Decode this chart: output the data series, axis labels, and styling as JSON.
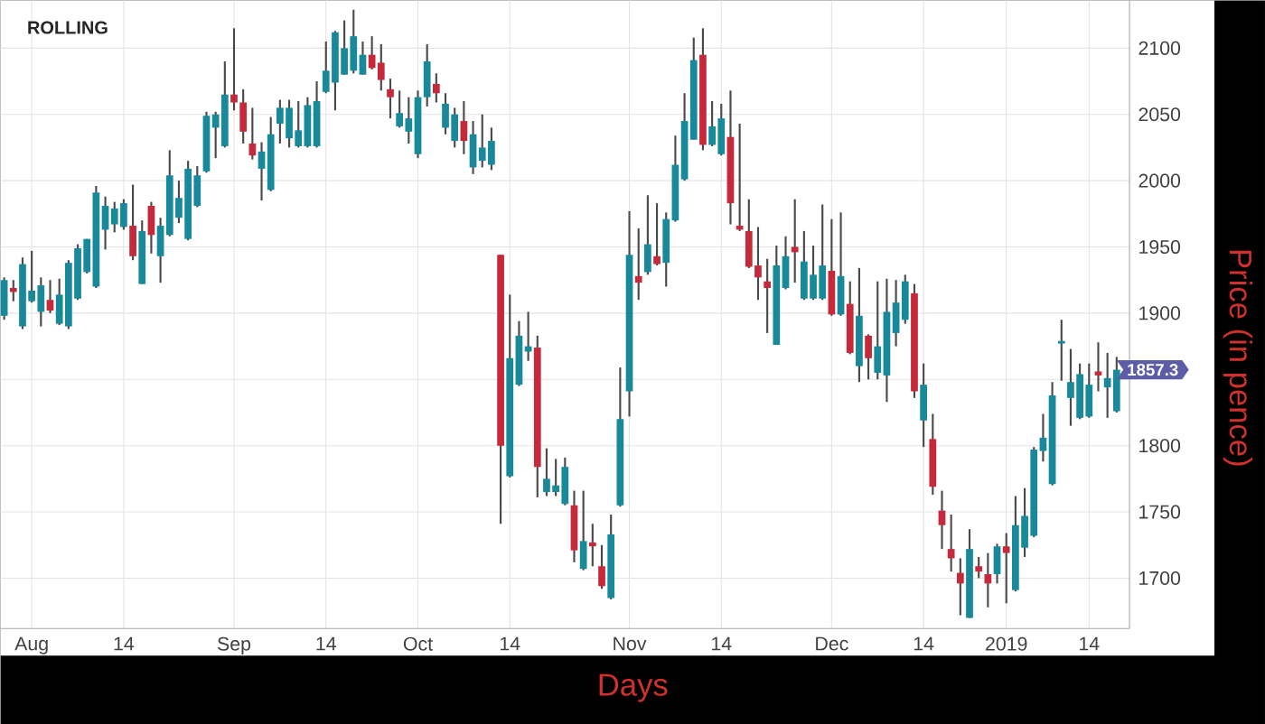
{
  "chart_data": {
    "type": "candlestick",
    "title": "ROLLING",
    "xlabel": "Days",
    "ylabel": "Price (in pence)",
    "categories": [
      null,
      null,
      null,
      "Aug",
      null,
      null,
      null,
      null,
      null,
      null,
      null,
      null,
      null,
      "14",
      null,
      null,
      null,
      null,
      null,
      null,
      null,
      null,
      null,
      null,
      null,
      "Sep",
      null,
      null,
      null,
      null,
      null,
      null,
      null,
      null,
      null,
      "14",
      null,
      null,
      null,
      null,
      null,
      null,
      null,
      null,
      null,
      "Oct",
      null,
      null,
      null,
      null,
      null,
      null,
      null,
      null,
      null,
      "14",
      null,
      null,
      null,
      null,
      null,
      null,
      null,
      null,
      null,
      null,
      null,
      null,
      "Nov",
      null,
      null,
      null,
      null,
      null,
      null,
      null,
      null,
      null,
      "14",
      null,
      null,
      null,
      null,
      null,
      null,
      null,
      null,
      null,
      null,
      null,
      "Dec",
      null,
      null,
      null,
      null,
      null,
      null,
      null,
      null,
      null,
      "14",
      null,
      null,
      null,
      null,
      null,
      null,
      null,
      null,
      "2019",
      null,
      null,
      null,
      null,
      null,
      null,
      null,
      null,
      "14",
      null,
      null,
      null
    ],
    "ohlc": [
      [
        1898,
        1927,
        1895,
        1925
      ],
      [
        1919,
        1925,
        1909,
        1916
      ],
      [
        1890,
        1942,
        1888,
        1937
      ],
      [
        1909,
        1947,
        1908,
        1917
      ],
      [
        1901,
        1927,
        1890,
        1921
      ],
      [
        1910,
        1925,
        1900,
        1902
      ],
      [
        1892,
        1926,
        1891,
        1914
      ],
      [
        1890,
        1940,
        1888,
        1938
      ],
      [
        1911,
        1952,
        1910,
        1949
      ],
      [
        1931,
        1956,
        1930,
        1956
      ],
      [
        1920,
        1996,
        1919,
        1991
      ],
      [
        1963,
        1988,
        1948,
        1981
      ],
      [
        1967,
        1984,
        1961,
        1979
      ],
      [
        1965,
        1986,
        1963,
        1983
      ],
      [
        1966,
        1997,
        1940,
        1943
      ],
      [
        1922,
        1970,
        1922,
        1962
      ],
      [
        1981,
        1984,
        1945,
        1959
      ],
      [
        1943,
        1972,
        1923,
        1966
      ],
      [
        1959,
        2023,
        1958,
        2004
      ],
      [
        1972,
        2000,
        1968,
        1987
      ],
      [
        1956,
        2015,
        1955,
        2009
      ],
      [
        1981,
        2011,
        1980,
        2004
      ],
      [
        2007,
        2052,
        2006,
        2049
      ],
      [
        2040,
        2052,
        2017,
        2050
      ],
      [
        2026,
        2090,
        2025,
        2065
      ],
      [
        2065,
        2115,
        2053,
        2059
      ],
      [
        2059,
        2069,
        2028,
        2037
      ],
      [
        2028,
        2055,
        2016,
        2019
      ],
      [
        2009,
        2029,
        1985,
        2022
      ],
      [
        1993,
        2048,
        1992,
        2035
      ],
      [
        2043,
        2061,
        2028,
        2055
      ],
      [
        2032,
        2061,
        2025,
        2055
      ],
      [
        2026,
        2060,
        2025,
        2038
      ],
      [
        2026,
        2063,
        2025,
        2057
      ],
      [
        2026,
        2075,
        2025,
        2060
      ],
      [
        2067,
        2105,
        2066,
        2083
      ],
      [
        2074,
        2113,
        2053,
        2112
      ],
      [
        2080,
        2121,
        2080,
        2100
      ],
      [
        2083,
        2129,
        2081,
        2109
      ],
      [
        2080,
        2105,
        2080,
        2095
      ],
      [
        2095,
        2109,
        2084,
        2085
      ],
      [
        2089,
        2103,
        2068,
        2076
      ],
      [
        2069,
        2077,
        2047,
        2063
      ],
      [
        2041,
        2068,
        2040,
        2051
      ],
      [
        2037,
        2063,
        2028,
        2047
      ],
      [
        2020,
        2068,
        2017,
        2063
      ],
      [
        2063,
        2103,
        2056,
        2090
      ],
      [
        2073,
        2081,
        2059,
        2066
      ],
      [
        2040,
        2066,
        2035,
        2058
      ],
      [
        2030,
        2055,
        2025,
        2050
      ],
      [
        2045,
        2060,
        2020,
        2030
      ],
      [
        2010,
        2045,
        2005,
        2035
      ],
      [
        2015,
        2050,
        2010,
        2025
      ],
      [
        2012,
        2040,
        2008,
        2030
      ],
      [
        1944,
        1944,
        1741,
        1800
      ],
      [
        1777,
        1914,
        1776,
        1866
      ],
      [
        1846,
        1894,
        1845,
        1883
      ],
      [
        1871,
        1901,
        1864,
        1875
      ],
      [
        1874,
        1883,
        1761,
        1784
      ],
      [
        1765,
        1798,
        1762,
        1775
      ],
      [
        1765,
        1790,
        1762,
        1770
      ],
      [
        1756,
        1791,
        1755,
        1784
      ],
      [
        1755,
        1766,
        1712,
        1721
      ],
      [
        1707,
        1766,
        1706,
        1728
      ],
      [
        1727,
        1741,
        1709,
        1724
      ],
      [
        1709,
        1725,
        1692,
        1694
      ],
      [
        1685,
        1748,
        1684,
        1733
      ],
      [
        1755,
        1859,
        1754,
        1820
      ],
      [
        1841,
        1977,
        1822,
        1944
      ],
      [
        1928,
        1964,
        1910,
        1923
      ],
      [
        1931,
        1989,
        1929,
        1952
      ],
      [
        1943,
        1983,
        1936,
        1937
      ],
      [
        1938,
        1976,
        1920,
        1971
      ],
      [
        1970,
        2034,
        1969,
        2012
      ],
      [
        2001,
        2066,
        2000,
        2045
      ],
      [
        2031,
        2108,
        2031,
        2091
      ],
      [
        2095,
        2115,
        2023,
        2027
      ],
      [
        2027,
        2060,
        2026,
        2041
      ],
      [
        2020,
        2058,
        2019,
        2047
      ],
      [
        2033,
        2068,
        1967,
        1983
      ],
      [
        1966,
        2043,
        1962,
        1963
      ],
      [
        1962,
        1986,
        1934,
        1935
      ],
      [
        1936,
        1965,
        1910,
        1927
      ],
      [
        1924,
        1941,
        1885,
        1919
      ],
      [
        1876,
        1951,
        1876,
        1936
      ],
      [
        1919,
        1958,
        1918,
        1943
      ],
      [
        1950,
        1986,
        1923,
        1946
      ],
      [
        1911,
        1962,
        1910,
        1939
      ],
      [
        1911,
        1951,
        1910,
        1929
      ],
      [
        1911,
        1982,
        1910,
        1936
      ],
      [
        1932,
        1971,
        1898,
        1899
      ],
      [
        1899,
        1976,
        1898,
        1928
      ],
      [
        1907,
        1924,
        1869,
        1870
      ],
      [
        1860,
        1934,
        1848,
        1898
      ],
      [
        1883,
        1884,
        1850,
        1866
      ],
      [
        1855,
        1924,
        1850,
        1875
      ],
      [
        1853,
        1926,
        1833,
        1901
      ],
      [
        1885,
        1925,
        1875,
        1908
      ],
      [
        1895,
        1929,
        1892,
        1924
      ],
      [
        1915,
        1922,
        1836,
        1841
      ],
      [
        1819,
        1862,
        1799,
        1846
      ],
      [
        1805,
        1824,
        1763,
        1769
      ],
      [
        1751,
        1766,
        1722,
        1740
      ],
      [
        1722,
        1748,
        1705,
        1715
      ],
      [
        1704,
        1715,
        1672,
        1696
      ],
      [
        1670,
        1737,
        1670,
        1722
      ],
      [
        1709,
        1716,
        1700,
        1705
      ],
      [
        1703,
        1719,
        1678,
        1696
      ],
      [
        1703,
        1726,
        1696,
        1724
      ],
      [
        1724,
        1734,
        1681,
        1719
      ],
      [
        1691,
        1762,
        1690,
        1740
      ],
      [
        1723,
        1768,
        1716,
        1747
      ],
      [
        1732,
        1799,
        1731,
        1797
      ],
      [
        1796,
        1824,
        1788,
        1806
      ],
      [
        1771,
        1848,
        1770,
        1838
      ],
      [
        1877,
        1895,
        1849,
        1879
      ],
      [
        1836,
        1873,
        1815,
        1848
      ],
      [
        1821,
        1862,
        1820,
        1854
      ],
      [
        1822,
        1862,
        1821,
        1846
      ],
      [
        1856,
        1878,
        1841,
        1853
      ],
      [
        1844,
        1870,
        1821,
        1851
      ],
      [
        1826,
        1867,
        1825,
        1857.3
      ]
    ],
    "colors": [
      "#17899a",
      "#c62a3a",
      "#17899a",
      "#17899a",
      "#17899a",
      "#c62a3a",
      "#17899a",
      "#17899a",
      "#17899a",
      "#17899a",
      "#17899a",
      "#17899a",
      "#17899a",
      "#17899a",
      "#c62a3a",
      "#17899a",
      "#c62a3a",
      "#17899a",
      "#17899a",
      "#17899a",
      "#17899a",
      "#17899a",
      "#17899a",
      "#17899a",
      "#17899a",
      "#c62a3a",
      "#c62a3a",
      "#c62a3a",
      "#17899a",
      "#17899a",
      "#17899a",
      "#17899a",
      "#17899a",
      "#17899a",
      "#17899a",
      "#17899a",
      "#17899a",
      "#17899a",
      "#17899a",
      "#17899a",
      "#c62a3a",
      "#c62a3a",
      "#c62a3a",
      "#17899a",
      "#17899a",
      "#17899a",
      "#17899a",
      "#c62a3a",
      "#17899a",
      "#17899a",
      "#c62a3a",
      "#17899a",
      "#17899a",
      "#17899a",
      "#c62a3a",
      "#17899a",
      "#17899a",
      "#17899a",
      "#c62a3a",
      "#17899a",
      "#17899a",
      "#17899a",
      "#c62a3a",
      "#17899a",
      "#c62a3a",
      "#c62a3a",
      "#17899a",
      "#17899a",
      "#17899a",
      "#c62a3a",
      "#17899a",
      "#c62a3a",
      "#17899a",
      "#17899a",
      "#17899a",
      "#17899a",
      "#c62a3a",
      "#17899a",
      "#17899a",
      "#c62a3a",
      "#c62a3a",
      "#c62a3a",
      "#c62a3a",
      "#c62a3a",
      "#17899a",
      "#17899a",
      "#c62a3a",
      "#17899a",
      "#17899a",
      "#17899a",
      "#c62a3a",
      "#17899a",
      "#c62a3a",
      "#17899a",
      "#c62a3a",
      "#17899a",
      "#17899a",
      "#17899a",
      "#17899a",
      "#c62a3a",
      "#17899a",
      "#c62a3a",
      "#c62a3a",
      "#c62a3a",
      "#c62a3a",
      "#17899a",
      "#c62a3a",
      "#c62a3a",
      "#17899a",
      "#c62a3a",
      "#17899a",
      "#17899a",
      "#17899a",
      "#17899a",
      "#17899a",
      "#17899a",
      "#17899a",
      "#17899a",
      "#17899a",
      "#c62a3a",
      "#17899a",
      "#17899a"
    ],
    "ylim": [
      1662,
      2136
    ],
    "yticks": [
      1700,
      1750,
      1800,
      {
        "value": 1850,
        "label": null
      },
      1900,
      1950,
      2000,
      2050,
      2100
    ],
    "grid": true,
    "annotations": [
      "1857.3"
    ]
  }
}
